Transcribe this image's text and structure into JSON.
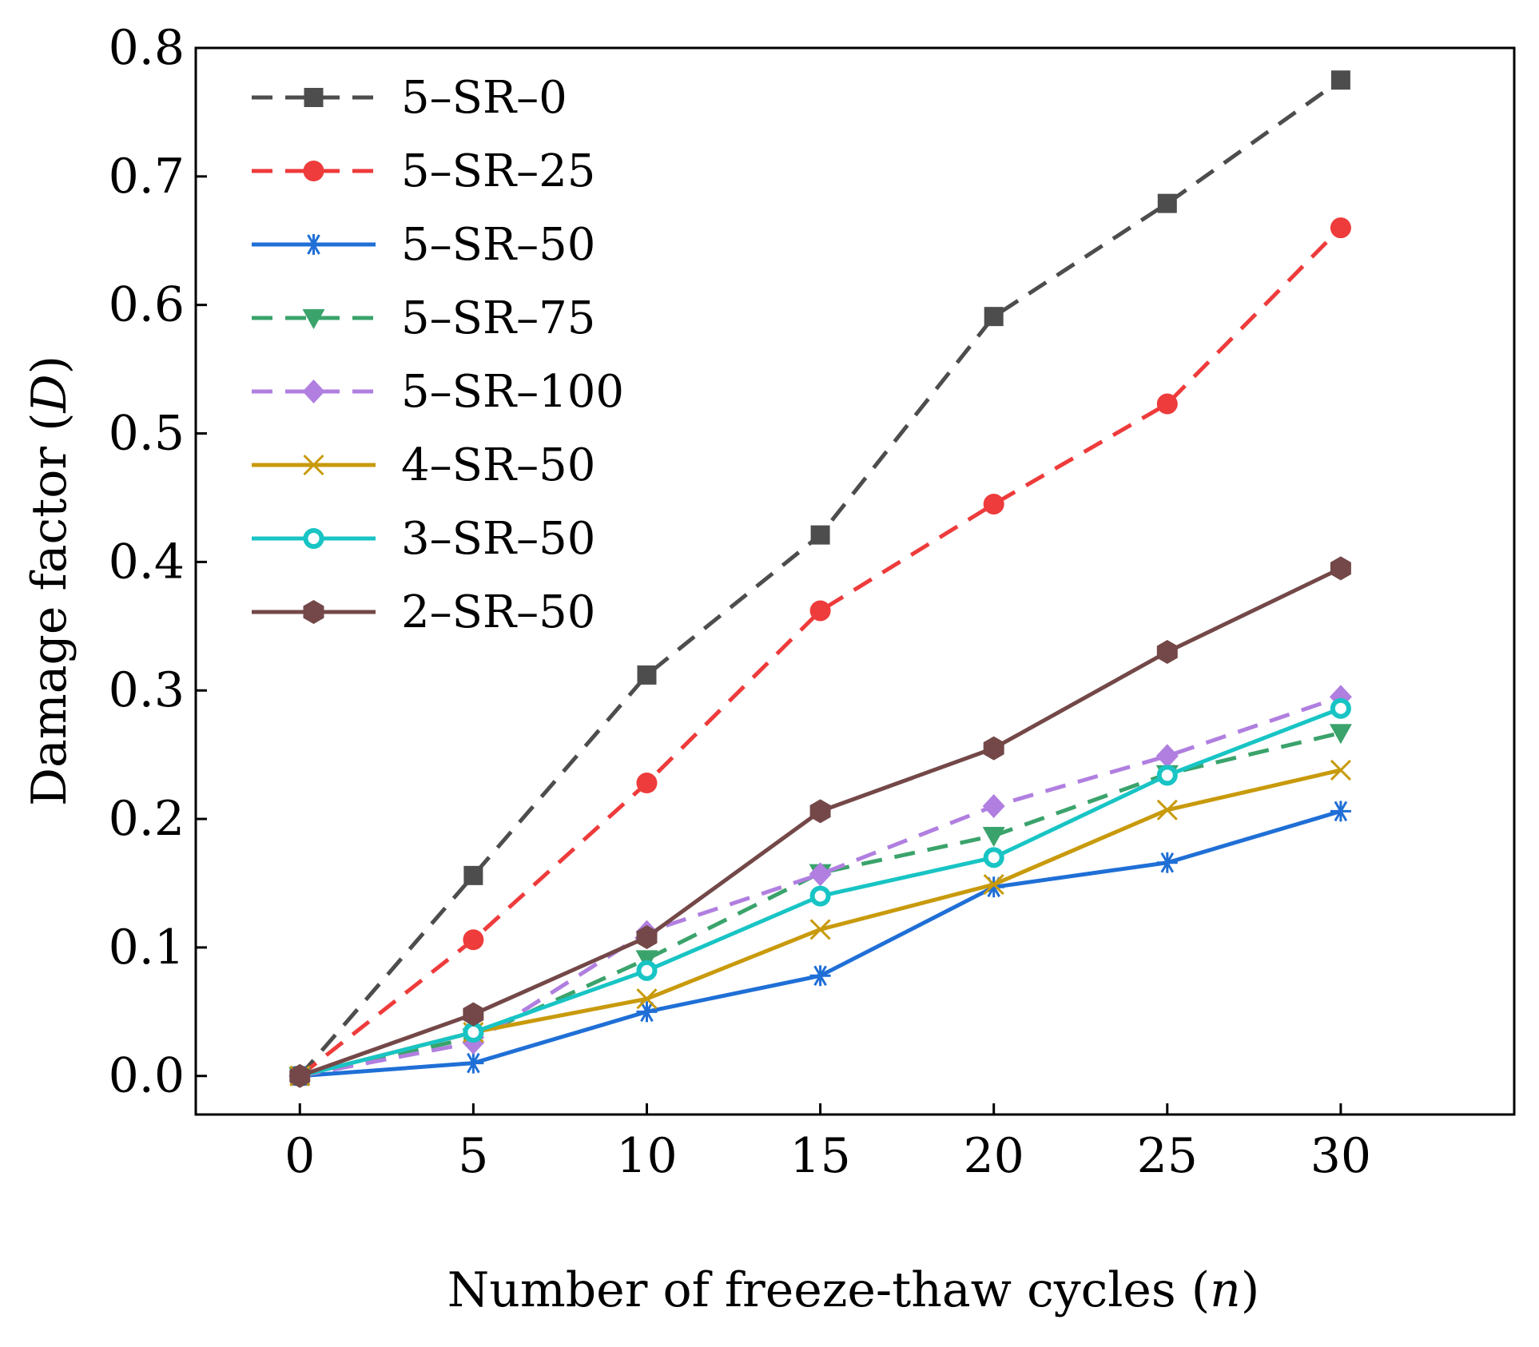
{
  "chart_data": {
    "type": "line",
    "xlabel": "Number of freeze-thaw cycles",
    "xlabel_var": "n",
    "ylabel": "Damage factor",
    "ylabel_var": "D",
    "xlim": [
      -3,
      35
    ],
    "ylim": [
      -0.03,
      0.8
    ],
    "x_ticks": [
      0,
      5,
      10,
      15,
      20,
      25,
      30
    ],
    "x_tick_labels": [
      "0",
      "5",
      "10",
      "15",
      "20",
      "25",
      "30"
    ],
    "y_ticks": [
      0.0,
      0.1,
      0.2,
      0.3,
      0.4,
      0.5,
      0.6,
      0.7,
      0.8
    ],
    "y_tick_labels": [
      "0.0",
      "0.1",
      "0.2",
      "0.3",
      "0.4",
      "0.5",
      "0.6",
      "0.7",
      "0.8"
    ],
    "grid": false,
    "legend_position": "top-left",
    "x": [
      0,
      5,
      10,
      15,
      20,
      25,
      30
    ],
    "series": [
      {
        "name": "5–SR–0",
        "values": [
          0,
          0.156,
          0.312,
          0.421,
          0.591,
          0.679,
          0.775
        ],
        "color": "#4d4d4d",
        "dash": true,
        "marker": "square"
      },
      {
        "name": "5–SR–25",
        "values": [
          0,
          0.106,
          0.228,
          0.362,
          0.445,
          0.523,
          0.66
        ],
        "color": "#ee3b3b",
        "dash": true,
        "marker": "circle"
      },
      {
        "name": "5–SR–50",
        "values": [
          0,
          0.01,
          0.05,
          0.078,
          0.147,
          0.166,
          0.206
        ],
        "color": "#1f6fd6",
        "dash": false,
        "marker": "asterisk"
      },
      {
        "name": "5–SR–75",
        "values": [
          0,
          0.03,
          0.091,
          0.158,
          0.187,
          0.235,
          0.267
        ],
        "color": "#3aa36b",
        "dash": true,
        "marker": "triangle-down"
      },
      {
        "name": "5–SR–100",
        "values": [
          0,
          0.026,
          0.112,
          0.157,
          0.21,
          0.249,
          0.295
        ],
        "color": "#b07fe0",
        "dash": true,
        "marker": "diamond"
      },
      {
        "name": "4–SR–50",
        "values": [
          0,
          0.034,
          0.06,
          0.114,
          0.149,
          0.207,
          0.238
        ],
        "color": "#c89a0c",
        "dash": false,
        "marker": "x"
      },
      {
        "name": "3–SR–50",
        "values": [
          0,
          0.034,
          0.082,
          0.14,
          0.17,
          0.234,
          0.286
        ],
        "color": "#18c4c4",
        "dash": false,
        "marker": "ring"
      },
      {
        "name": "2–SR–50",
        "values": [
          0,
          0.048,
          0.108,
          0.206,
          0.255,
          0.33,
          0.395
        ],
        "color": "#744848",
        "dash": false,
        "marker": "hexagon"
      }
    ]
  }
}
